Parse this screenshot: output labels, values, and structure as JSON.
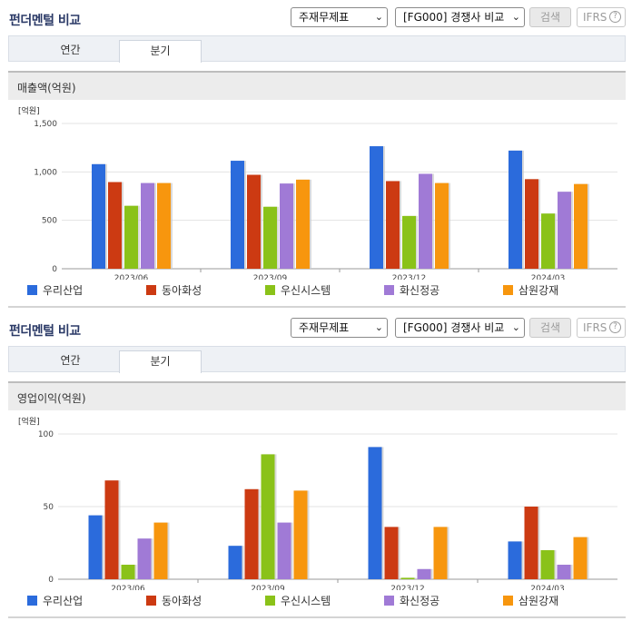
{
  "panels": [
    {
      "title": "펀더멘털 비교",
      "select_statement": "주재무제표",
      "select_compare": "[FG000] 경쟁사 비교",
      "search_label": "검색",
      "ifrs_label": "IFRS",
      "help_glyph": "?",
      "tabs": [
        "연간",
        "분기"
      ],
      "active_tab": "분기",
      "section_label": "매출액(억원)"
    },
    {
      "title": "펀더멘털 비교",
      "select_statement": "주재무제표",
      "select_compare": "[FG000] 경쟁사 비교",
      "search_label": "검색",
      "ifrs_label": "IFRS",
      "help_glyph": "?",
      "tabs": [
        "연간",
        "분기"
      ],
      "active_tab": "분기",
      "section_label": "영업이익(억원)"
    }
  ],
  "chart_data": [
    {
      "type": "bar",
      "unit_label": "[억원]",
      "categories": [
        "2023/06",
        "2023/09",
        "2023/12",
        "2024/03"
      ],
      "ylim": [
        0,
        1500
      ],
      "yticks": [
        0,
        500,
        1000,
        1500
      ],
      "ytick_labels": [
        "0",
        "500",
        "1,000",
        "1,500"
      ],
      "grid": true,
      "legend_position": "bottom",
      "series": [
        {
          "name": "우리산업",
          "color": "#2b6bdc",
          "values": [
            1080,
            1115,
            1265,
            1220
          ]
        },
        {
          "name": "동아화성",
          "color": "#cc3a12",
          "values": [
            895,
            970,
            905,
            925
          ]
        },
        {
          "name": "우신시스템",
          "color": "#8ac219",
          "values": [
            650,
            640,
            545,
            570
          ]
        },
        {
          "name": "화신정공",
          "color": "#a07ad6",
          "values": [
            885,
            880,
            980,
            795
          ]
        },
        {
          "name": "삼원강재",
          "color": "#f7960e",
          "values": [
            885,
            920,
            885,
            875
          ]
        }
      ]
    },
    {
      "type": "bar",
      "unit_label": "[억원]",
      "categories": [
        "2023/06",
        "2023/09",
        "2023/12",
        "2024/03"
      ],
      "ylim": [
        0,
        100
      ],
      "yticks": [
        0,
        50,
        100
      ],
      "ytick_labels": [
        "0",
        "50",
        "100"
      ],
      "grid": true,
      "legend_position": "bottom",
      "series": [
        {
          "name": "우리산업",
          "color": "#2b6bdc",
          "values": [
            44,
            23,
            91,
            26
          ]
        },
        {
          "name": "동아화성",
          "color": "#cc3a12",
          "values": [
            68,
            62,
            36,
            50
          ]
        },
        {
          "name": "우신시스템",
          "color": "#8ac219",
          "values": [
            10,
            86,
            1,
            20
          ]
        },
        {
          "name": "화신정공",
          "color": "#a07ad6",
          "values": [
            28,
            39,
            7,
            10
          ]
        },
        {
          "name": "삼원강재",
          "color": "#f7960e",
          "values": [
            39,
            61,
            36,
            29
          ]
        }
      ]
    }
  ]
}
